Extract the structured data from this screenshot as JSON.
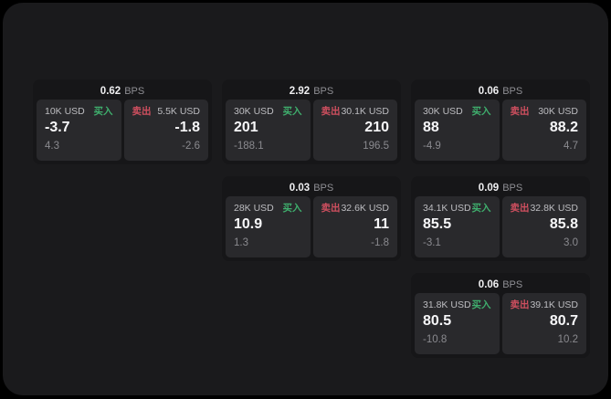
{
  "page": {
    "bps_suffix": "BPS",
    "buy_label": "买入",
    "sell_label": "卖出",
    "colors": {
      "backdrop": "#000000",
      "panel_background": "#1a1a1c",
      "card_background": "#161618",
      "tile_background": "#29292c",
      "buy_green": "#3fae6d",
      "sell_red": "#cf4f5f",
      "value_text": "#f7f7f9",
      "muted_text": "#8a8a8f"
    }
  },
  "cards": [
    {
      "bps": "0.62",
      "buy": {
        "amount": "10K USD",
        "value": "-3.7",
        "sub": "4.3"
      },
      "sell": {
        "amount": "5.5K USD",
        "value": "-1.8",
        "sub": "-2.6"
      }
    },
    {
      "bps": "2.92",
      "buy": {
        "amount": "30K USD",
        "value": "201",
        "sub": "-188.1"
      },
      "sell": {
        "amount": "30.1K USD",
        "value": "210",
        "sub": "196.5"
      }
    },
    {
      "bps": "0.06",
      "buy": {
        "amount": "30K USD",
        "value": "88",
        "sub": "-4.9"
      },
      "sell": {
        "amount": "30K USD",
        "value": "88.2",
        "sub": "4.7"
      }
    },
    {
      "bps": "0.03",
      "buy": {
        "amount": "28K USD",
        "value": "10.9",
        "sub": "1.3"
      },
      "sell": {
        "amount": "32.6K USD",
        "value": "11",
        "sub": "-1.8"
      }
    },
    {
      "bps": "0.09",
      "buy": {
        "amount": "34.1K USD",
        "value": "85.5",
        "sub": "-3.1"
      },
      "sell": {
        "amount": "32.8K USD",
        "value": "85.8",
        "sub": "3.0"
      }
    },
    {
      "bps": "0.06",
      "buy": {
        "amount": "31.8K USD",
        "value": "80.5",
        "sub": "-10.8"
      },
      "sell": {
        "amount": "39.1K USD",
        "value": "80.7",
        "sub": "10.2"
      }
    }
  ]
}
